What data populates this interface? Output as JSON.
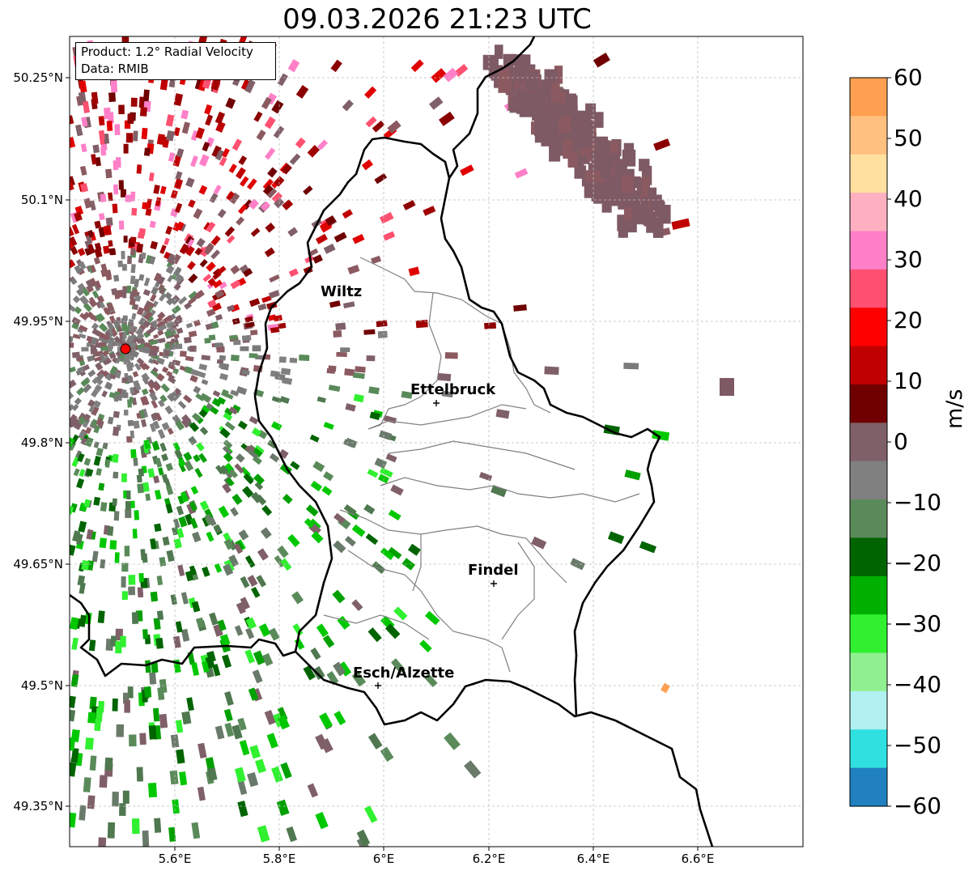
{
  "title": "09.03.2026 21:23 UTC",
  "info": {
    "product": "Product: 1.2° Radial Velocity",
    "data": "Data: RMIB"
  },
  "lat_labels": [
    "50.25°N",
    "50.1°N",
    "49.95°N",
    "49.8°N",
    "49.65°N",
    "49.5°N",
    "49.35°N"
  ],
  "lon_labels": [
    "5.6°E",
    "5.8°E",
    "6°E",
    "6.2°E",
    "6.4°E",
    "6.6°E"
  ],
  "cities": [
    "Wiltz",
    "Ettelbruck",
    "Findel",
    "Esch/Alzette"
  ],
  "colorbar": {
    "unit": "m/s",
    "ticks": [
      "60",
      "50",
      "40",
      "30",
      "20",
      "10",
      "0",
      "−10",
      "−20",
      "−30",
      "−40",
      "−50",
      "−60"
    ],
    "stops": [
      "#ffa050",
      "#ffc080",
      "#ffe0a0",
      "#ffb0c0",
      "#ff80c8",
      "#ff5070",
      "#ff0000",
      "#c00000",
      "#700000",
      "#806068",
      "#808080",
      "#5a8a5a",
      "#006400",
      "#00b000",
      "#30f030",
      "#90f090",
      "#b0f0f0",
      "#30e0e0",
      "#2080c0"
    ]
  },
  "radar_site_color": "#ff0000"
}
